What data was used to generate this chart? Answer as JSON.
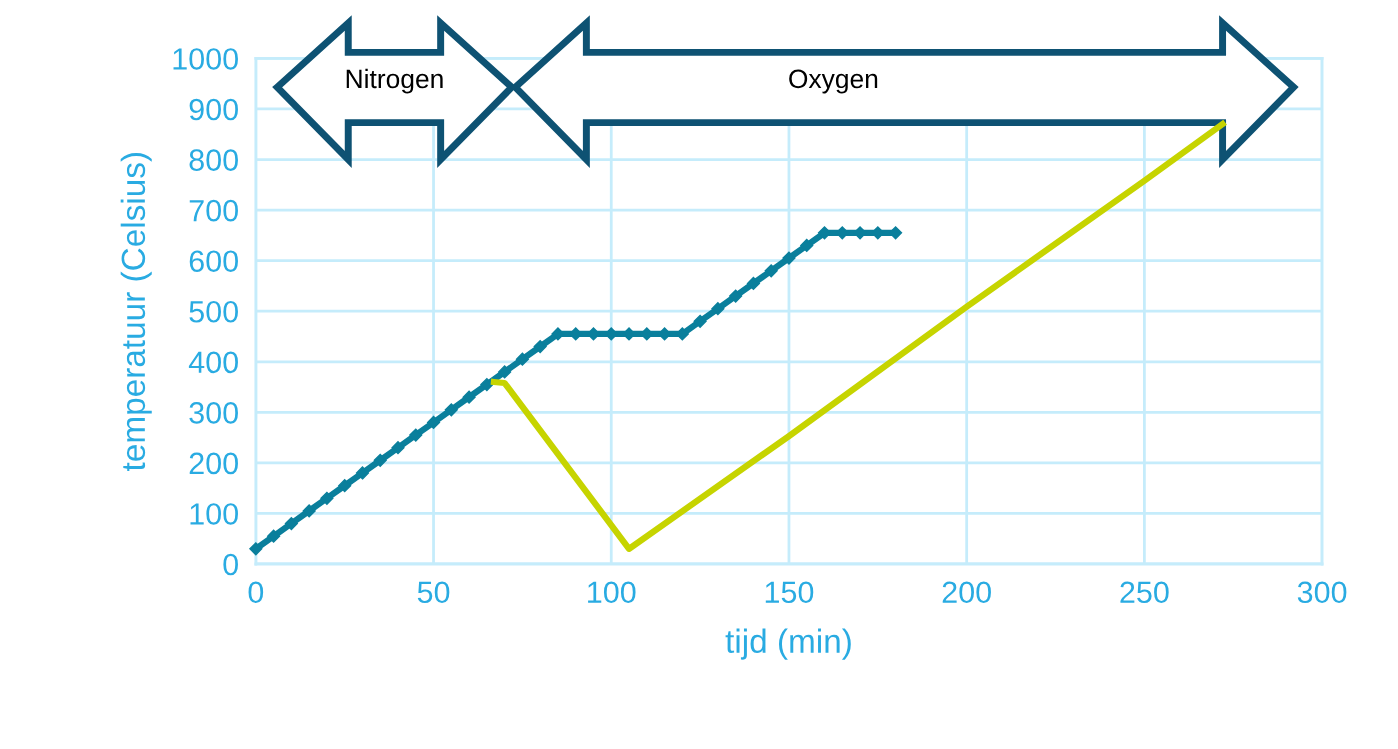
{
  "chart_data": {
    "type": "line",
    "xlabel": "tijd (min)",
    "ylabel": "temperatuur (Celsius)",
    "xlim": [
      0,
      300
    ],
    "ylim": [
      0,
      1000
    ],
    "xticks": [
      0,
      50,
      100,
      150,
      200,
      250,
      300
    ],
    "yticks": [
      0,
      100,
      200,
      300,
      400,
      500,
      600,
      700,
      800,
      900,
      1000
    ],
    "grid": true,
    "legend": false,
    "series": [
      {
        "color": "#0a7f9c",
        "marker": "diamond",
        "x": [
          0,
          5,
          10,
          15,
          20,
          25,
          30,
          35,
          40,
          45,
          50,
          55,
          60,
          65,
          70,
          75,
          80,
          85,
          90,
          95,
          100,
          105,
          110,
          115,
          120,
          125,
          130,
          135,
          140,
          145,
          150,
          155,
          160,
          165,
          170,
          175,
          180
        ],
        "values": [
          30,
          55,
          80,
          105,
          130,
          155,
          180,
          205,
          230,
          255,
          280,
          305,
          330,
          355,
          380,
          405,
          430,
          455,
          455,
          455,
          455,
          455,
          455,
          455,
          455,
          480,
          505,
          530,
          555,
          580,
          605,
          630,
          655,
          655,
          655,
          655,
          655
        ]
      },
      {
        "color": "#c6d400",
        "marker": "none",
        "x": [
          67,
          70,
          105,
          150,
          200,
          250,
          272
        ],
        "values": [
          360,
          358,
          30,
          253,
          509,
          758,
          870
        ]
      }
    ],
    "annotations": [
      "Nitrogen",
      "Oxygen"
    ]
  }
}
